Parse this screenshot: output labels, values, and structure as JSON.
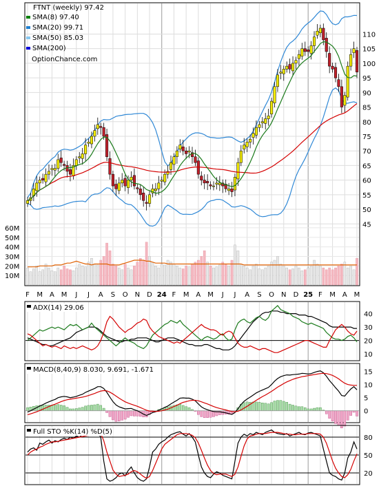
{
  "chart_data": [
    {
      "type": "candlestick",
      "title": "FTNT (weekly) 97.42",
      "watermark": "OptionChance.com",
      "legend": [
        {
          "name": "SMA(8) 97.40",
          "color": "#008000"
        },
        {
          "name": "SMA(20) 99.71",
          "color": "#1e7fd0"
        },
        {
          "name": "SMA(50) 85.03",
          "color": "#87c7f0"
        },
        {
          "name": "SMA(200)",
          "color": "#0000dd"
        }
      ],
      "series_colors": {
        "sma50": "#d40000",
        "band": "#2f88d6",
        "sma8": "#1a7a1a"
      },
      "ylim": [
        42,
        116
      ],
      "yticks": [
        45,
        50,
        55,
        60,
        65,
        70,
        75,
        80,
        85,
        90,
        95,
        100,
        105,
        110
      ],
      "x_month_labels": [
        "F",
        "M",
        "A",
        "M",
        "J",
        "J",
        "A",
        "S",
        "O",
        "N",
        "D",
        "24",
        "F",
        "M",
        "A",
        "M",
        "J",
        "J",
        "A",
        "S",
        "O",
        "N",
        "D",
        "25",
        "F",
        "M",
        "A",
        "M"
      ],
      "year_markers": [
        "24",
        "25"
      ],
      "closes": [
        53,
        54,
        57,
        59,
        60,
        60,
        62,
        63,
        64,
        64,
        67,
        66,
        65,
        63,
        62,
        65,
        67,
        68,
        69,
        72,
        73,
        75,
        77,
        79,
        78,
        75,
        68,
        62,
        58,
        57,
        59,
        60,
        58,
        60,
        61,
        58,
        57,
        55,
        53,
        52,
        55,
        57,
        57,
        59,
        60,
        62,
        63,
        66,
        68,
        70,
        72,
        70,
        69,
        70,
        68,
        66,
        62,
        60,
        59,
        59,
        58,
        58,
        59,
        59,
        58,
        57,
        57,
        56,
        61,
        66,
        70,
        72,
        73,
        74,
        76,
        78,
        79,
        80,
        81,
        82,
        87,
        92,
        96,
        97,
        98,
        99,
        98,
        100,
        101,
        103,
        105,
        104,
        104,
        106,
        109,
        111,
        112,
        108,
        104,
        99,
        98,
        95,
        92,
        85,
        89,
        99,
        103,
        105,
        97
      ]
    },
    {
      "type": "bar",
      "title": "Volume",
      "yticks": [
        "60M",
        "50M",
        "40M",
        "30M",
        "20M",
        "10M"
      ],
      "ylim": [
        0,
        65
      ],
      "values": [
        18,
        14,
        17,
        20,
        14,
        16,
        22,
        18,
        15,
        14,
        18,
        16,
        20,
        17,
        16,
        15,
        18,
        22,
        20,
        19,
        24,
        28,
        22,
        21,
        26,
        30,
        44,
        36,
        22,
        20,
        18,
        16,
        22,
        18,
        16,
        20,
        24,
        28,
        26,
        45,
        30,
        24,
        20,
        18,
        22,
        21,
        26,
        24,
        22,
        20,
        18,
        17,
        20,
        19,
        22,
        24,
        26,
        30,
        36,
        24,
        20,
        18,
        19,
        21,
        24,
        22,
        20,
        26,
        42,
        36,
        22,
        20,
        18,
        16,
        20,
        22,
        17,
        16,
        18,
        20,
        24,
        26,
        30,
        22,
        20,
        18,
        16,
        17,
        20,
        18,
        15,
        16,
        18,
        20,
        26,
        22,
        20,
        18,
        16,
        18,
        16,
        18,
        20,
        22,
        24,
        18,
        20,
        16,
        28
      ],
      "series": [
        {
          "name": "Volume SMA",
          "values": [
            19,
            19,
            19,
            19,
            20,
            20,
            20,
            20,
            20,
            21,
            21,
            21,
            22,
            23,
            23,
            24,
            25,
            24,
            23,
            22,
            22,
            21,
            22,
            22,
            22,
            22,
            22,
            21,
            21,
            21,
            21,
            22,
            23,
            24,
            25,
            26,
            26,
            26,
            26,
            25,
            25,
            24,
            23,
            23,
            23,
            23,
            22,
            22,
            22,
            22,
            22,
            22,
            22,
            22,
            22,
            22,
            22,
            22,
            22,
            22,
            22,
            22,
            22,
            22,
            22,
            22,
            22,
            22,
            22,
            22,
            22,
            21,
            21,
            21,
            21,
            21,
            21,
            21,
            21,
            21,
            21,
            21,
            21,
            21,
            21,
            21,
            21,
            21,
            21,
            21,
            21,
            21,
            21,
            21,
            21,
            21,
            21,
            21,
            21,
            21,
            21,
            21,
            21,
            21,
            21,
            21,
            21,
            21,
            21
          ]
        }
      ]
    },
    {
      "type": "line",
      "title": "ADX(14) 29.06",
      "ylim": [
        7,
        47
      ],
      "yticks": [
        10,
        20,
        30,
        40
      ],
      "series": [
        {
          "name": "ADX",
          "values": [
            22,
            21,
            20,
            19,
            18,
            17,
            17,
            16,
            16,
            17,
            18,
            19,
            20,
            21,
            22,
            24,
            26,
            27,
            28,
            29,
            30,
            30,
            30,
            29,
            27,
            25,
            23,
            22,
            21,
            20,
            19,
            19,
            20,
            20,
            21,
            21,
            22,
            22,
            22,
            22,
            21,
            20,
            19,
            19,
            20,
            21,
            22,
            22,
            22,
            21,
            20,
            19,
            18,
            17,
            17,
            16,
            16,
            16,
            17,
            17,
            16,
            15,
            14,
            14,
            13,
            13,
            13,
            14,
            16,
            19,
            22,
            25,
            28,
            31,
            34,
            36,
            38,
            40,
            41,
            41,
            42,
            42,
            42,
            41,
            41,
            40,
            40,
            40,
            40,
            39,
            39,
            39,
            38,
            38,
            37,
            36,
            35,
            34,
            33,
            31,
            30,
            30,
            30,
            30,
            30,
            30,
            30,
            29,
            29
          ]
        },
        {
          "name": "+DI",
          "values": [
            20,
            22,
            24,
            26,
            28,
            27,
            28,
            29,
            30,
            29,
            30,
            29,
            28,
            30,
            32,
            31,
            32,
            30,
            28,
            29,
            30,
            33,
            30,
            28,
            26,
            24,
            22,
            20,
            18,
            16,
            18,
            20,
            22,
            20,
            19,
            18,
            16,
            15,
            14,
            16,
            20,
            24,
            26,
            28,
            30,
            32,
            33,
            35,
            34,
            33,
            35,
            32,
            30,
            28,
            26,
            24,
            22,
            20,
            22,
            23,
            22,
            21,
            22,
            24,
            25,
            22,
            20,
            21,
            28,
            33,
            35,
            36,
            34,
            33,
            35,
            37,
            38,
            36,
            35,
            37,
            42,
            44,
            46,
            43,
            42,
            41,
            40,
            38,
            37,
            36,
            34,
            33,
            32,
            33,
            32,
            31,
            30,
            29,
            26,
            24,
            22,
            21,
            21,
            20,
            21,
            23,
            24,
            22,
            19
          ]
        },
        {
          "name": "-DI",
          "values": [
            25,
            24,
            22,
            20,
            18,
            16,
            17,
            16,
            15,
            16,
            15,
            14,
            16,
            15,
            14,
            15,
            14,
            15,
            16,
            15,
            14,
            13,
            14,
            16,
            20,
            26,
            34,
            38,
            36,
            33,
            30,
            28,
            26,
            28,
            29,
            31,
            33,
            34,
            36,
            35,
            30,
            27,
            25,
            23,
            22,
            21,
            20,
            19,
            18,
            19,
            18,
            20,
            22,
            24,
            26,
            28,
            30,
            32,
            30,
            29,
            28,
            28,
            27,
            25,
            24,
            26,
            27,
            26,
            22,
            18,
            16,
            15,
            15,
            16,
            15,
            14,
            13,
            14,
            14,
            13,
            12,
            11,
            11,
            12,
            13,
            14,
            15,
            16,
            17,
            18,
            19,
            20,
            20,
            19,
            18,
            17,
            16,
            15,
            15,
            20,
            24,
            28,
            30,
            32,
            30,
            27,
            25,
            24,
            27
          ]
        }
      ]
    },
    {
      "type": "line",
      "title": "MACD(8,40,9) 8.030, 9.691, -1.671",
      "ylim": [
        -3.5,
        17
      ],
      "yticks": [
        -5,
        0,
        5,
        10,
        15
      ],
      "series": [
        {
          "name": "MACD",
          "values": [
            -0.5,
            0,
            0.6,
            1.2,
            1.8,
            2.3,
            2.9,
            3.4,
            3.9,
            4.3,
            5,
            5.3,
            5.5,
            5.3,
            5,
            5.2,
            5.5,
            5.9,
            6.3,
            7,
            7.5,
            8,
            8.5,
            9.2,
            9.2,
            8.5,
            7,
            5.2,
            3.5,
            2.2,
            1.5,
            1.1,
            0.7,
            0.8,
            0.9,
            0.4,
            0,
            -0.6,
            -1.3,
            -1.8,
            -1.3,
            -0.7,
            -0.4,
            0.2,
            0.7,
            1.3,
            1.8,
            2.6,
            3.3,
            4,
            4.8,
            4.9,
            4.8,
            4.8,
            4.4,
            3.8,
            2.6,
            1.5,
            0.8,
            0.4,
            0,
            -0.3,
            -0.4,
            -0.4,
            -0.6,
            -0.8,
            -1.1,
            -1.4,
            -0.7,
            0.8,
            2.4,
            3.6,
            4.5,
            5.2,
            6,
            6.8,
            7.4,
            7.9,
            8.4,
            8.9,
            10,
            11.3,
            12.3,
            13,
            13.4,
            13.7,
            13.6,
            13.8,
            13.9,
            14,
            14.3,
            14.2,
            14,
            14.2,
            14.6,
            15,
            15.2,
            14.5,
            13.2,
            11.5,
            10.2,
            8.8,
            7.5,
            5.8,
            5.6,
            7,
            8.3,
            9.2,
            8
          ]
        },
        {
          "name": "Signal",
          "values": [
            -1.5,
            -1.2,
            -0.8,
            -0.4,
            0.1,
            0.6,
            1.1,
            1.6,
            2.1,
            2.5,
            3,
            3.5,
            3.9,
            4.2,
            4.4,
            4.6,
            4.8,
            5,
            5.2,
            5.5,
            5.8,
            6.2,
            6.6,
            7.1,
            7.5,
            7.7,
            7.6,
            7.1,
            6.4,
            5.6,
            4.8,
            4.1,
            3.4,
            2.9,
            2.5,
            2.1,
            1.7,
            1.2,
            0.7,
            0.2,
            -0.1,
            -0.2,
            -0.3,
            -0.2,
            0,
            0.3,
            0.6,
            1.1,
            1.6,
            2.1,
            2.7,
            3.2,
            3.5,
            3.8,
            4,
            4,
            3.8,
            3.4,
            3,
            2.6,
            2.1,
            1.6,
            1.2,
            0.9,
            0.6,
            0.3,
            0,
            -0.3,
            -0.4,
            -0.2,
            0.3,
            1,
            1.7,
            2.5,
            3.2,
            4,
            4.7,
            5.4,
            6,
            6.7,
            7.4,
            8.2,
            9,
            9.7,
            10.4,
            11,
            11.5,
            12,
            12.4,
            12.7,
            13,
            13.2,
            13.4,
            13.6,
            13.8,
            14,
            14.2,
            14.3,
            14.2,
            13.9,
            13.5,
            12.9,
            12.2,
            11.3,
            10.5,
            10,
            9.8,
            9.7,
            9.7
          ]
        }
      ]
    },
    {
      "type": "line",
      "title": "Full STO %K(14) %D(5)",
      "ylim": [
        5,
        95
      ],
      "yticks": [
        20,
        50,
        80
      ],
      "series": [
        {
          "name": "%K",
          "values": [
            55,
            60,
            62,
            58,
            70,
            68,
            72,
            75,
            70,
            74,
            72,
            76,
            78,
            76,
            80,
            78,
            82,
            80,
            84,
            85,
            86,
            88,
            86,
            88,
            80,
            40,
            10,
            6,
            8,
            12,
            18,
            20,
            15,
            24,
            30,
            20,
            12,
            8,
            6,
            10,
            30,
            55,
            60,
            68,
            72,
            75,
            80,
            84,
            86,
            88,
            89,
            85,
            82,
            86,
            80,
            72,
            50,
            30,
            20,
            14,
            12,
            18,
            22,
            20,
            16,
            14,
            12,
            10,
            40,
            70,
            80,
            85,
            82,
            86,
            84,
            88,
            86,
            84,
            88,
            90,
            92,
            88,
            86,
            85,
            84,
            86,
            82,
            84,
            86,
            88,
            85,
            84,
            87,
            88,
            86,
            84,
            82,
            60,
            40,
            20,
            16,
            14,
            10,
            8,
            20,
            45,
            55,
            72,
            60
          ]
        },
        {
          "name": "%D",
          "values": [
            50,
            55,
            58,
            60,
            63,
            65,
            68,
            70,
            72,
            72,
            73,
            74,
            75,
            76,
            77,
            78,
            79,
            80,
            81,
            82,
            83,
            85,
            86,
            87,
            86,
            74,
            55,
            40,
            25,
            18,
            14,
            15,
            16,
            18,
            22,
            24,
            22,
            18,
            14,
            11,
            14,
            24,
            36,
            48,
            60,
            68,
            72,
            76,
            80,
            84,
            86,
            86,
            86,
            85,
            83,
            79,
            70,
            58,
            45,
            33,
            24,
            19,
            17,
            18,
            18,
            18,
            16,
            14,
            18,
            30,
            48,
            65,
            77,
            82,
            83,
            85,
            86,
            86,
            86,
            87,
            88,
            88,
            88,
            87,
            86,
            85,
            85,
            84,
            84,
            85,
            85,
            85,
            86,
            86,
            86,
            86,
            85,
            80,
            70,
            55,
            40,
            28,
            20,
            14,
            12,
            17,
            26,
            40,
            52
          ]
        }
      ]
    }
  ]
}
